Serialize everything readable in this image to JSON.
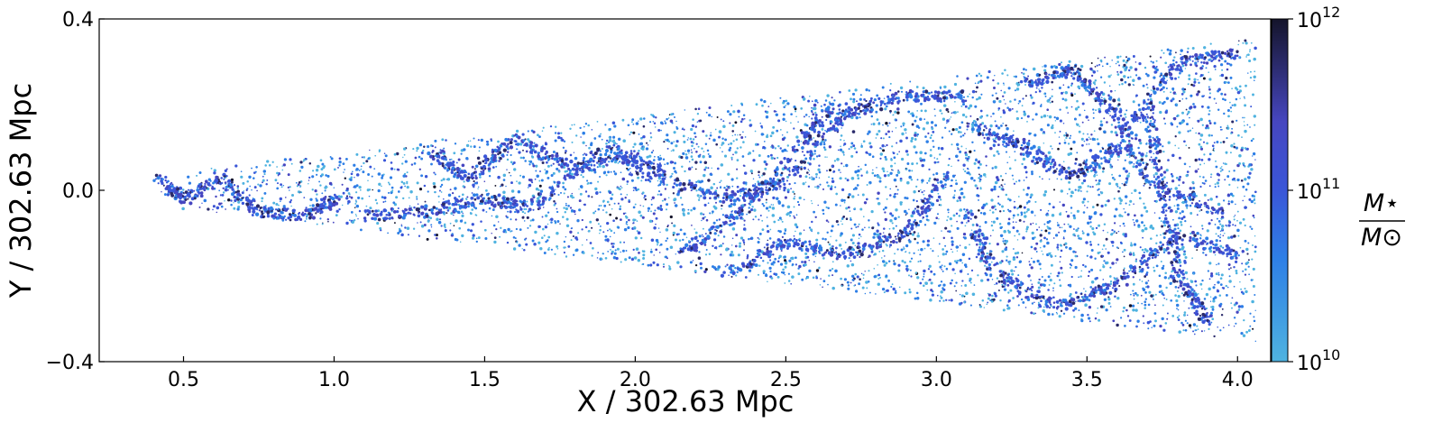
{
  "chart_data": {
    "type": "scatter",
    "title": "",
    "xlabel": "X / 302.63 Mpc",
    "ylabel": "Y / 302.63 Mpc",
    "xlim": [
      0.22,
      4.11
    ],
    "ylim": [
      -0.4,
      0.4
    ],
    "x_ticks": [
      0.5,
      1.0,
      1.5,
      2.0,
      2.5,
      3.0,
      3.5,
      4.0
    ],
    "x_tick_labels": [
      "0.5",
      "1.0",
      "1.5",
      "2.0",
      "2.5",
      "3.0",
      "3.5",
      "4.0"
    ],
    "y_ticks": [
      -0.4,
      0.0,
      0.4
    ],
    "y_tick_labels": [
      "−0.4",
      "0.0",
      "0.4"
    ],
    "grid": false,
    "cone": {
      "x_min": 0.4,
      "x_max": 4.06,
      "half_width_at_x_max": 0.355
    },
    "colorbar": {
      "label_numerator": "M⋆",
      "label_denominator": "M⊙",
      "scale": "log",
      "range": [
        10000000000.0,
        1000000000000.0
      ],
      "ticks": [
        {
          "value": 1000000000000.0,
          "base": "10",
          "exp": "12"
        },
        {
          "value": 100000000000.0,
          "base": "10",
          "exp": "11"
        },
        {
          "value": 10000000000.0,
          "base": "10",
          "exp": "10"
        }
      ],
      "colors": [
        "#4fb3e0",
        "#2e7fe6",
        "#3a56d8",
        "#4646c0",
        "#2a2a6a",
        "#14142a"
      ]
    },
    "filaments": [
      {
        "points": [
          [
            0.42,
            0.03
          ],
          [
            0.5,
            -0.02
          ],
          [
            0.62,
            0.03
          ],
          [
            0.75,
            -0.05
          ],
          [
            0.9,
            -0.06
          ],
          [
            1.0,
            -0.02
          ]
        ]
      },
      {
        "points": [
          [
            1.1,
            -0.06
          ],
          [
            1.3,
            -0.05
          ],
          [
            1.5,
            -0.02
          ],
          [
            1.65,
            -0.04
          ],
          [
            1.9,
            0.1
          ],
          [
            2.1,
            0.04
          ]
        ]
      },
      {
        "points": [
          [
            1.3,
            0.1
          ],
          [
            1.45,
            0.03
          ],
          [
            1.6,
            0.12
          ],
          [
            1.8,
            0.05
          ],
          [
            2.0,
            0.08
          ]
        ]
      },
      {
        "points": [
          [
            2.0,
            0.05
          ],
          [
            2.3,
            -0.02
          ],
          [
            2.5,
            0.02
          ],
          [
            2.7,
            0.18
          ],
          [
            2.9,
            0.22
          ],
          [
            3.1,
            0.22
          ]
        ]
      },
      {
        "points": [
          [
            2.15,
            -0.15
          ],
          [
            2.35,
            -0.05
          ],
          [
            2.55,
            0.1
          ],
          [
            2.65,
            0.2
          ]
        ]
      },
      {
        "points": [
          [
            3.1,
            0.15
          ],
          [
            3.3,
            0.1
          ],
          [
            3.45,
            0.03
          ],
          [
            3.6,
            0.1
          ],
          [
            3.8,
            0.3
          ],
          [
            4.0,
            0.32
          ]
        ]
      },
      {
        "points": [
          [
            3.1,
            -0.05
          ],
          [
            3.2,
            -0.2
          ],
          [
            3.4,
            -0.27
          ],
          [
            3.6,
            -0.22
          ],
          [
            3.8,
            -0.1
          ],
          [
            4.0,
            -0.15
          ]
        ]
      },
      {
        "points": [
          [
            3.7,
            0.2
          ],
          [
            3.75,
            0.0
          ],
          [
            3.8,
            -0.2
          ],
          [
            3.9,
            -0.3
          ]
        ]
      },
      {
        "points": [
          [
            2.3,
            -0.2
          ],
          [
            2.5,
            -0.12
          ],
          [
            2.7,
            -0.15
          ],
          [
            2.9,
            -0.1
          ],
          [
            3.05,
            0.05
          ]
        ]
      },
      {
        "points": [
          [
            3.3,
            0.25
          ],
          [
            3.45,
            0.28
          ],
          [
            3.6,
            0.18
          ],
          [
            3.7,
            0.02
          ],
          [
            3.95,
            -0.05
          ]
        ]
      }
    ]
  }
}
